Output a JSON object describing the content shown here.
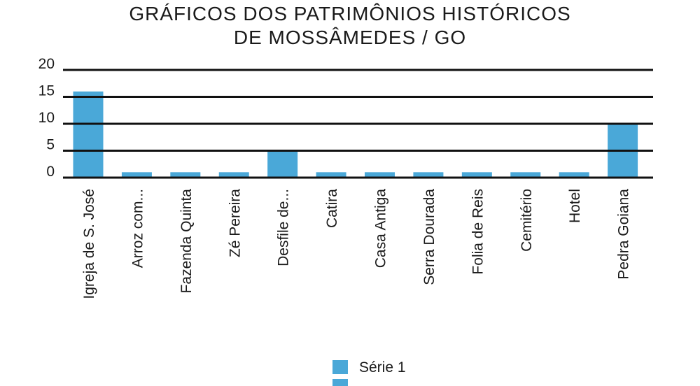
{
  "title_line1": "GRÁFICOS DOS PATRIMÔNIOS HISTÓRICOS",
  "title_line2": "DE MOSSÂMEDES / GO",
  "colors": {
    "bar": "#4aa8d8",
    "grid": "#111111",
    "text": "#1a1a1a"
  },
  "chart_data": {
    "type": "bar",
    "title": "GRÁFICOS DOS PATRIMÔNIOS HISTÓRICOS DE MOSSÂMEDES / GO",
    "categories": [
      "Igreja de S. José",
      "Arroz com...",
      "Fazenda Quinta",
      "Zé Pereira",
      "Desfile de...",
      "Catira",
      "Casa Antiga",
      "Serra Dourada",
      "Folia de Reis",
      "Cemitério",
      "Hotel",
      "Pedra Goiana"
    ],
    "series": [
      {
        "name": "Série 1",
        "values": [
          16,
          1,
          1,
          1,
          5,
          1,
          1,
          1,
          1,
          1,
          1,
          10
        ]
      }
    ],
    "yticks": [
      "20",
      "15",
      "10",
      "5",
      "0"
    ],
    "ylim": [
      0,
      20
    ],
    "grid": true,
    "legend": "bottom-center"
  }
}
